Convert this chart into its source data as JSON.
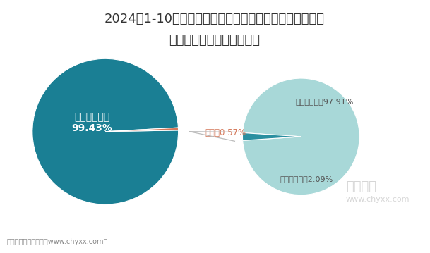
{
  "title_line1": "2024年1-10月云南省进出口总额占全国比重及外商投资企",
  "title_line2": "业占进出口总额比重统计图",
  "pie1_values": [
    99.43,
    0.57
  ],
  "pie1_colors": [
    "#1a7f94",
    "#d4785a"
  ],
  "pie1_label_large_line1": "全国其他省份",
  "pie1_label_large_line2": "99.43%",
  "pie1_label_small": "云南省0.57%",
  "pie2_values": [
    97.91,
    2.09
  ],
  "pie2_colors": [
    "#a8d8d8",
    "#2a8fa0"
  ],
  "pie2_label_large": "其他企业类型97.91%",
  "pie2_label_small": "外商投资企业2.09%",
  "bg_color": "#ffffff",
  "title_color": "#333333",
  "title_fontsize": 13,
  "footer": "制图：智研咨询整理（www.chyxx.com）",
  "watermark_line1": "智研咨询",
  "watermark_line2": "www.chyxx.com",
  "line_color": "#bbbbbb",
  "small_label_color": "#d4785a",
  "outer_label_color": "#555555"
}
